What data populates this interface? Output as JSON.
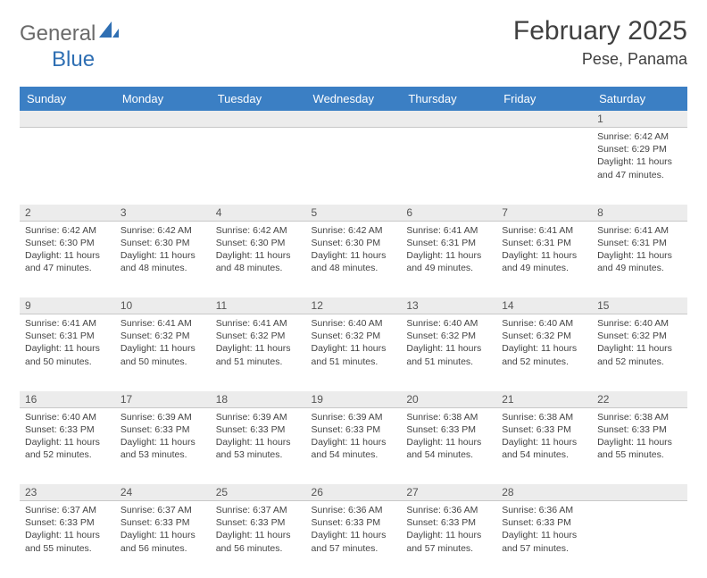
{
  "logo": {
    "part1": "General",
    "part2": "Blue"
  },
  "title": "February 2025",
  "location": "Pese, Panama",
  "colors": {
    "header_bg": "#3b7fc4",
    "header_text": "#ffffff",
    "daynum_bg": "#ececec",
    "border": "#c8c8c8",
    "logo_gray": "#6a6a6a",
    "logo_blue": "#2f6fb3"
  },
  "day_names": [
    "Sunday",
    "Monday",
    "Tuesday",
    "Wednesday",
    "Thursday",
    "Friday",
    "Saturday"
  ],
  "weeks": [
    [
      {
        "n": "",
        "sr": "",
        "ss": "",
        "dl": ""
      },
      {
        "n": "",
        "sr": "",
        "ss": "",
        "dl": ""
      },
      {
        "n": "",
        "sr": "",
        "ss": "",
        "dl": ""
      },
      {
        "n": "",
        "sr": "",
        "ss": "",
        "dl": ""
      },
      {
        "n": "",
        "sr": "",
        "ss": "",
        "dl": ""
      },
      {
        "n": "",
        "sr": "",
        "ss": "",
        "dl": ""
      },
      {
        "n": "1",
        "sr": "Sunrise: 6:42 AM",
        "ss": "Sunset: 6:29 PM",
        "dl": "Daylight: 11 hours and 47 minutes."
      }
    ],
    [
      {
        "n": "2",
        "sr": "Sunrise: 6:42 AM",
        "ss": "Sunset: 6:30 PM",
        "dl": "Daylight: 11 hours and 47 minutes."
      },
      {
        "n": "3",
        "sr": "Sunrise: 6:42 AM",
        "ss": "Sunset: 6:30 PM",
        "dl": "Daylight: 11 hours and 48 minutes."
      },
      {
        "n": "4",
        "sr": "Sunrise: 6:42 AM",
        "ss": "Sunset: 6:30 PM",
        "dl": "Daylight: 11 hours and 48 minutes."
      },
      {
        "n": "5",
        "sr": "Sunrise: 6:42 AM",
        "ss": "Sunset: 6:30 PM",
        "dl": "Daylight: 11 hours and 48 minutes."
      },
      {
        "n": "6",
        "sr": "Sunrise: 6:41 AM",
        "ss": "Sunset: 6:31 PM",
        "dl": "Daylight: 11 hours and 49 minutes."
      },
      {
        "n": "7",
        "sr": "Sunrise: 6:41 AM",
        "ss": "Sunset: 6:31 PM",
        "dl": "Daylight: 11 hours and 49 minutes."
      },
      {
        "n": "8",
        "sr": "Sunrise: 6:41 AM",
        "ss": "Sunset: 6:31 PM",
        "dl": "Daylight: 11 hours and 49 minutes."
      }
    ],
    [
      {
        "n": "9",
        "sr": "Sunrise: 6:41 AM",
        "ss": "Sunset: 6:31 PM",
        "dl": "Daylight: 11 hours and 50 minutes."
      },
      {
        "n": "10",
        "sr": "Sunrise: 6:41 AM",
        "ss": "Sunset: 6:32 PM",
        "dl": "Daylight: 11 hours and 50 minutes."
      },
      {
        "n": "11",
        "sr": "Sunrise: 6:41 AM",
        "ss": "Sunset: 6:32 PM",
        "dl": "Daylight: 11 hours and 51 minutes."
      },
      {
        "n": "12",
        "sr": "Sunrise: 6:40 AM",
        "ss": "Sunset: 6:32 PM",
        "dl": "Daylight: 11 hours and 51 minutes."
      },
      {
        "n": "13",
        "sr": "Sunrise: 6:40 AM",
        "ss": "Sunset: 6:32 PM",
        "dl": "Daylight: 11 hours and 51 minutes."
      },
      {
        "n": "14",
        "sr": "Sunrise: 6:40 AM",
        "ss": "Sunset: 6:32 PM",
        "dl": "Daylight: 11 hours and 52 minutes."
      },
      {
        "n": "15",
        "sr": "Sunrise: 6:40 AM",
        "ss": "Sunset: 6:32 PM",
        "dl": "Daylight: 11 hours and 52 minutes."
      }
    ],
    [
      {
        "n": "16",
        "sr": "Sunrise: 6:40 AM",
        "ss": "Sunset: 6:33 PM",
        "dl": "Daylight: 11 hours and 52 minutes."
      },
      {
        "n": "17",
        "sr": "Sunrise: 6:39 AM",
        "ss": "Sunset: 6:33 PM",
        "dl": "Daylight: 11 hours and 53 minutes."
      },
      {
        "n": "18",
        "sr": "Sunrise: 6:39 AM",
        "ss": "Sunset: 6:33 PM",
        "dl": "Daylight: 11 hours and 53 minutes."
      },
      {
        "n": "19",
        "sr": "Sunrise: 6:39 AM",
        "ss": "Sunset: 6:33 PM",
        "dl": "Daylight: 11 hours and 54 minutes."
      },
      {
        "n": "20",
        "sr": "Sunrise: 6:38 AM",
        "ss": "Sunset: 6:33 PM",
        "dl": "Daylight: 11 hours and 54 minutes."
      },
      {
        "n": "21",
        "sr": "Sunrise: 6:38 AM",
        "ss": "Sunset: 6:33 PM",
        "dl": "Daylight: 11 hours and 54 minutes."
      },
      {
        "n": "22",
        "sr": "Sunrise: 6:38 AM",
        "ss": "Sunset: 6:33 PM",
        "dl": "Daylight: 11 hours and 55 minutes."
      }
    ],
    [
      {
        "n": "23",
        "sr": "Sunrise: 6:37 AM",
        "ss": "Sunset: 6:33 PM",
        "dl": "Daylight: 11 hours and 55 minutes."
      },
      {
        "n": "24",
        "sr": "Sunrise: 6:37 AM",
        "ss": "Sunset: 6:33 PM",
        "dl": "Daylight: 11 hours and 56 minutes."
      },
      {
        "n": "25",
        "sr": "Sunrise: 6:37 AM",
        "ss": "Sunset: 6:33 PM",
        "dl": "Daylight: 11 hours and 56 minutes."
      },
      {
        "n": "26",
        "sr": "Sunrise: 6:36 AM",
        "ss": "Sunset: 6:33 PM",
        "dl": "Daylight: 11 hours and 57 minutes."
      },
      {
        "n": "27",
        "sr": "Sunrise: 6:36 AM",
        "ss": "Sunset: 6:33 PM",
        "dl": "Daylight: 11 hours and 57 minutes."
      },
      {
        "n": "28",
        "sr": "Sunrise: 6:36 AM",
        "ss": "Sunset: 6:33 PM",
        "dl": "Daylight: 11 hours and 57 minutes."
      },
      {
        "n": "",
        "sr": "",
        "ss": "",
        "dl": ""
      }
    ]
  ]
}
